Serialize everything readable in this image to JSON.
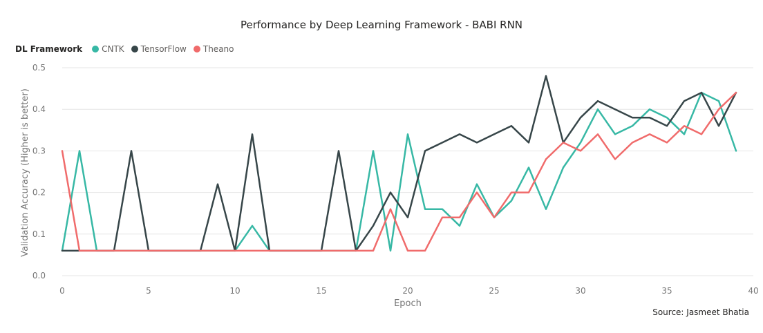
{
  "chart_data": {
    "type": "line",
    "title": "Performance by Deep Learning Framework - BABI RNN",
    "xlabel": "Epoch",
    "ylabel": "Validation Accuracy (Higher is better)",
    "xlim": [
      0,
      40
    ],
    "ylim": [
      0,
      0.5
    ],
    "xticks": [
      0,
      5,
      10,
      15,
      20,
      25,
      30,
      35,
      40
    ],
    "yticks": [
      0.0,
      0.1,
      0.2,
      0.3,
      0.4,
      0.5
    ],
    "ytick_labels": [
      "0.0",
      "0.1",
      "0.2",
      "0.3",
      "0.4",
      "0.5"
    ],
    "grid": "horizontal",
    "legend_title": "DL Framework",
    "legend_position": "top-left",
    "x": [
      0,
      1,
      2,
      3,
      4,
      5,
      6,
      7,
      8,
      9,
      10,
      11,
      12,
      13,
      14,
      15,
      16,
      17,
      18,
      19,
      20,
      21,
      22,
      23,
      24,
      25,
      26,
      27,
      28,
      29,
      30,
      31,
      32,
      33,
      34,
      35,
      36,
      37,
      38,
      39
    ],
    "series": [
      {
        "name": "CNTK",
        "color": "#37b8a5",
        "values": [
          0.06,
          0.3,
          0.06,
          0.06,
          0.06,
          0.06,
          0.06,
          0.06,
          0.06,
          0.06,
          0.06,
          0.12,
          0.06,
          0.06,
          0.06,
          0.06,
          0.06,
          0.06,
          0.3,
          0.06,
          0.34,
          0.16,
          0.16,
          0.12,
          0.22,
          0.14,
          0.18,
          0.26,
          0.16,
          0.26,
          0.32,
          0.4,
          0.34,
          0.36,
          0.4,
          0.38,
          0.34,
          0.44,
          0.42,
          0.3
        ]
      },
      {
        "name": "TensorFlow",
        "color": "#374649",
        "values": [
          0.06,
          0.06,
          0.06,
          0.06,
          0.3,
          0.06,
          0.06,
          0.06,
          0.06,
          0.22,
          0.06,
          0.34,
          0.06,
          0.06,
          0.06,
          0.06,
          0.3,
          0.06,
          0.12,
          0.2,
          0.14,
          0.3,
          0.32,
          0.34,
          0.32,
          0.34,
          0.36,
          0.32,
          0.48,
          0.32,
          0.38,
          0.42,
          0.4,
          0.38,
          0.38,
          0.36,
          0.42,
          0.44,
          0.36,
          0.44
        ]
      },
      {
        "name": "Theano",
        "color": "#f06b6b",
        "values": [
          0.3,
          0.06,
          0.06,
          0.06,
          0.06,
          0.06,
          0.06,
          0.06,
          0.06,
          0.06,
          0.06,
          0.06,
          0.06,
          0.06,
          0.06,
          0.06,
          0.06,
          0.06,
          0.06,
          0.16,
          0.06,
          0.06,
          0.14,
          0.14,
          0.2,
          0.14,
          0.2,
          0.2,
          0.28,
          0.32,
          0.3,
          0.34,
          0.28,
          0.32,
          0.34,
          0.32,
          0.36,
          0.34,
          0.4,
          0.44
        ]
      }
    ],
    "source": "Source: Jasmeet Bhatia"
  }
}
